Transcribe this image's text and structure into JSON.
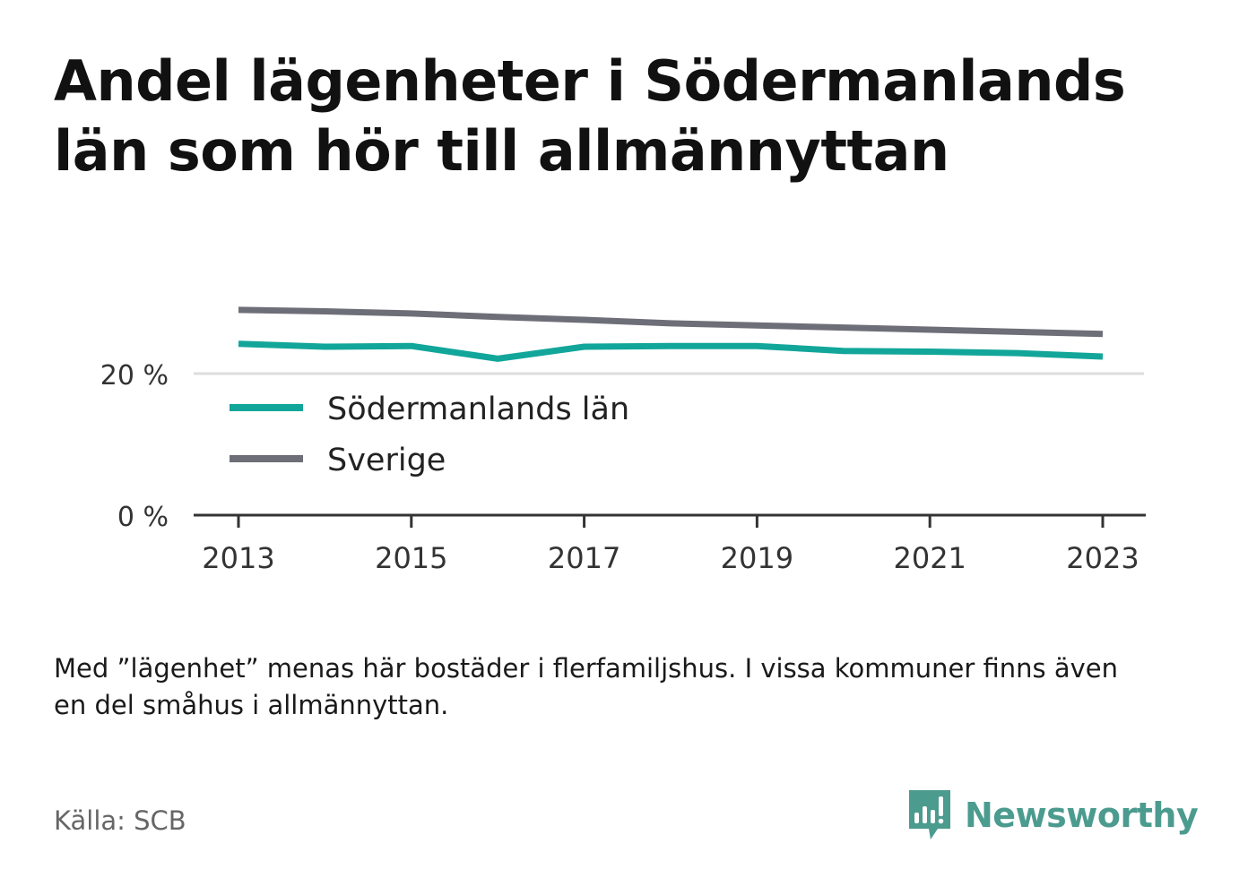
{
  "title": "Andel lägenheter i Södermanlands län som hör till allmännyttan",
  "note": "Med ”lägenhet” menas här bostäder i flerfamiljshus. I vissa kommuner finns även en del småhus i allmännyttan.",
  "source": "Källa: SCB",
  "brand": "Newsworthy",
  "colors": {
    "sodermanland": "#12a69a",
    "sverige": "#6e6e78",
    "brand": "#4b9b8e",
    "grid": "#dddddd",
    "axis": "#333333"
  },
  "chart_data": {
    "type": "line",
    "x": [
      2013,
      2014,
      2015,
      2016,
      2017,
      2018,
      2019,
      2020,
      2021,
      2022,
      2023
    ],
    "x_tick_labels": [
      "2013",
      "2015",
      "2017",
      "2019",
      "2021",
      "2023"
    ],
    "y_tick_labels": [
      "0 %",
      "20 %"
    ],
    "ylim": [
      0,
      38
    ],
    "grid": true,
    "legend_position": "inside-left",
    "series": [
      {
        "name": "Södermanlands län",
        "values": [
          24.2,
          23.8,
          23.9,
          22.1,
          23.8,
          23.9,
          23.9,
          23.2,
          23.1,
          22.9,
          22.4
        ]
      },
      {
        "name": "Sverige",
        "values": [
          29.0,
          28.8,
          28.5,
          28.0,
          27.6,
          27.1,
          26.8,
          26.5,
          26.2,
          25.9,
          25.6
        ]
      }
    ]
  }
}
